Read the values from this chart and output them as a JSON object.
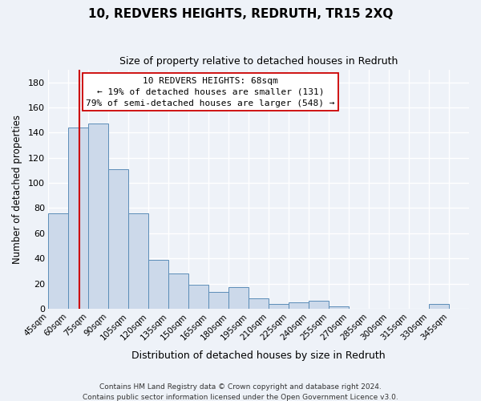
{
  "title": "10, REDVERS HEIGHTS, REDRUTH, TR15 2XQ",
  "subtitle": "Size of property relative to detached houses in Redruth",
  "xlabel": "Distribution of detached houses by size in Redruth",
  "ylabel": "Number of detached properties",
  "bar_color": "#ccd9ea",
  "bar_edge_color": "#5b8db8",
  "bin_labels": [
    "45sqm",
    "60sqm",
    "75sqm",
    "90sqm",
    "105sqm",
    "120sqm",
    "135sqm",
    "150sqm",
    "165sqm",
    "180sqm",
    "195sqm",
    "210sqm",
    "225sqm",
    "240sqm",
    "255sqm",
    "270sqm",
    "285sqm",
    "300sqm",
    "315sqm",
    "330sqm",
    "345sqm"
  ],
  "bin_edges": [
    45,
    60,
    75,
    90,
    105,
    120,
    135,
    150,
    165,
    180,
    195,
    210,
    225,
    240,
    255,
    270,
    285,
    300,
    315,
    330,
    345,
    360
  ],
  "counts": [
    76,
    144,
    147,
    111,
    76,
    39,
    28,
    19,
    13,
    17,
    8,
    4,
    5,
    6,
    2,
    0,
    0,
    0,
    0,
    4,
    0
  ],
  "ylim": [
    0,
    190
  ],
  "yticks": [
    0,
    20,
    40,
    60,
    80,
    100,
    120,
    140,
    160,
    180
  ],
  "vline_x": 68,
  "annotation_title": "10 REDVERS HEIGHTS: 68sqm",
  "annotation_line1": "← 19% of detached houses are smaller (131)",
  "annotation_line2": "79% of semi-detached houses are larger (548) →",
  "footer1": "Contains HM Land Registry data © Crown copyright and database right 2024.",
  "footer2": "Contains public sector information licensed under the Open Government Licence v3.0.",
  "background_color": "#eef2f8",
  "grid_color": "#ffffff",
  "vline_color": "#cc0000"
}
